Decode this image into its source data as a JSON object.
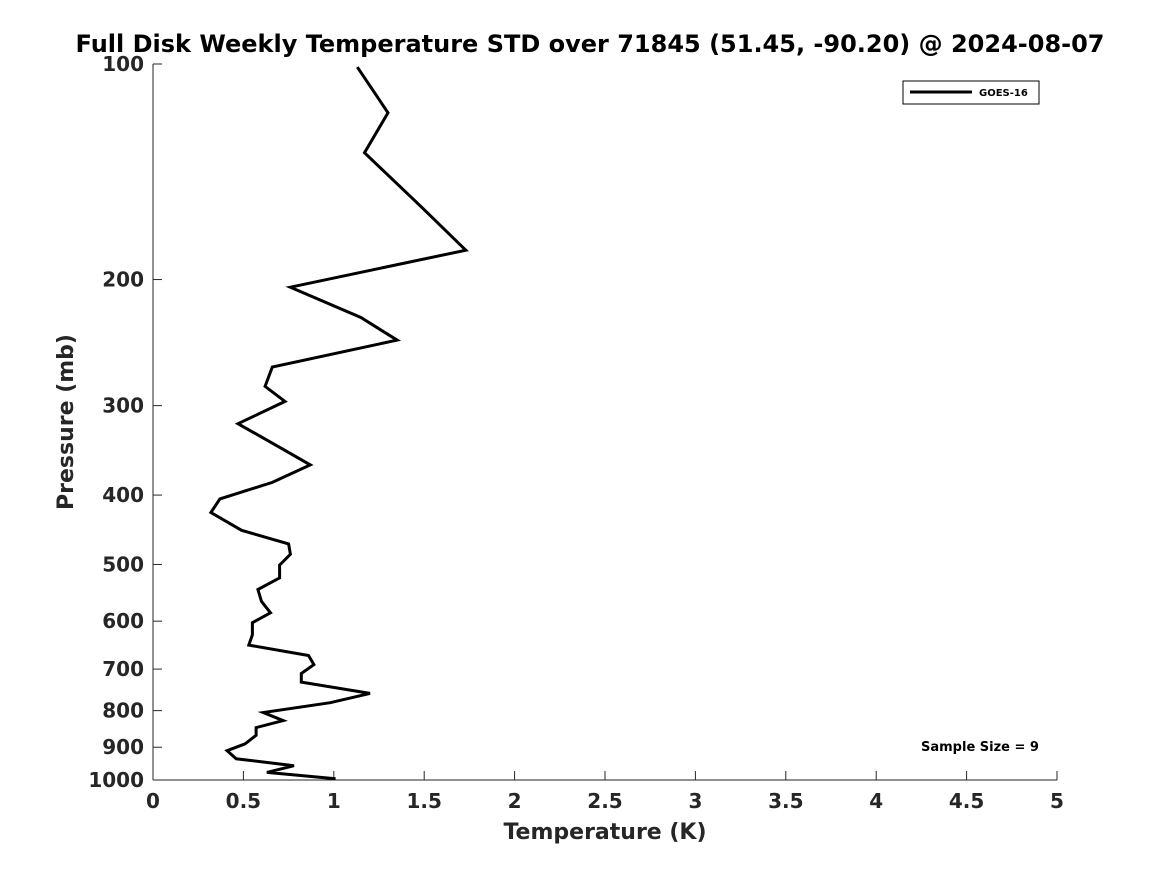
{
  "chart_data": {
    "type": "line",
    "title": "Full Disk Weekly Temperature STD over 71845 (51.45, -90.20) @ 2024-08-07",
    "xlabel": "Temperature (K)",
    "ylabel": "Pressure (mb)",
    "xlim": [
      0,
      5
    ],
    "ylim": [
      100,
      1000
    ],
    "y_scale": "log",
    "y_reversed": true,
    "grid": false,
    "legend_position": "top-right",
    "x_ticks": [
      0,
      0.5,
      1,
      1.5,
      2,
      2.5,
      3,
      3.5,
      4,
      4.5,
      5
    ],
    "x_tick_labels": [
      "0",
      "0.5",
      "1",
      "1.5",
      "2",
      "2.5",
      "3",
      "3.5",
      "4",
      "4.5",
      "5"
    ],
    "y_ticks": [
      100,
      200,
      300,
      400,
      500,
      600,
      700,
      800,
      900,
      1000
    ],
    "y_tick_labels": [
      "100",
      "200",
      "300",
      "400",
      "500",
      "600",
      "700",
      "800",
      "900",
      "1000"
    ],
    "series": [
      {
        "name": "GOES-16",
        "color": "#000000",
        "x": [
          1.13,
          1.3,
          1.17,
          1.48,
          1.73,
          0.76,
          1.15,
          1.35,
          0.66,
          0.62,
          0.73,
          0.47,
          0.7,
          0.87,
          0.66,
          0.37,
          0.32,
          0.49,
          0.75,
          0.76,
          0.7,
          0.7,
          0.58,
          0.6,
          0.65,
          0.55,
          0.55,
          0.53,
          0.86,
          0.89,
          0.82,
          0.82,
          1.2,
          0.98,
          0.61,
          0.72,
          0.57,
          0.57,
          0.51,
          0.41,
          0.46,
          0.78,
          0.63,
          1.01
        ],
        "y": [
          101,
          117,
          133,
          158,
          182,
          205,
          226,
          243,
          265,
          282,
          296,
          318,
          343,
          363,
          384,
          405,
          423,
          448,
          468,
          484,
          501,
          522,
          542,
          563,
          584,
          603,
          627,
          648,
          670,
          690,
          710,
          730,
          757,
          780,
          805,
          826,
          845,
          866,
          890,
          910,
          934,
          955,
          976,
          996
        ]
      }
    ],
    "annotations": [
      {
        "text": "Sample Size = 9",
        "position": "bottom-right"
      }
    ]
  }
}
